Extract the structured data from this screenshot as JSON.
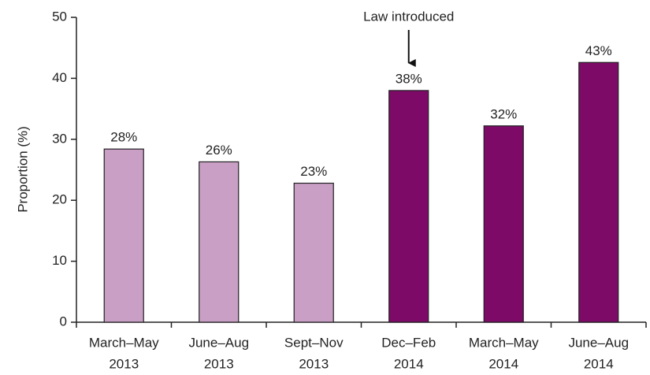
{
  "chart_data": {
    "type": "bar",
    "ylabel": "Proportion (%)",
    "categories": [
      [
        "March–May",
        "2013"
      ],
      [
        "June–Aug",
        "2013"
      ],
      [
        "Sept–Nov",
        "2013"
      ],
      [
        "Dec–Feb",
        "2014"
      ],
      [
        "March–May",
        "2014"
      ],
      [
        "June–Aug",
        "2014"
      ]
    ],
    "values": [
      28.4,
      26.3,
      22.8,
      38,
      32.2,
      42.6
    ],
    "value_labels": [
      "28%",
      "26%",
      "23%",
      "38%",
      "32%",
      "43%"
    ],
    "colors": [
      "#c99fc5",
      "#c99fc5",
      "#c99fc5",
      "#7d0a66",
      "#7d0a66",
      "#7d0a66"
    ],
    "ylim": [
      0,
      50
    ],
    "yticks": [
      0,
      10,
      20,
      30,
      40,
      50
    ],
    "annotations": [
      {
        "text": "Law introduced",
        "category": 3
      }
    ]
  }
}
